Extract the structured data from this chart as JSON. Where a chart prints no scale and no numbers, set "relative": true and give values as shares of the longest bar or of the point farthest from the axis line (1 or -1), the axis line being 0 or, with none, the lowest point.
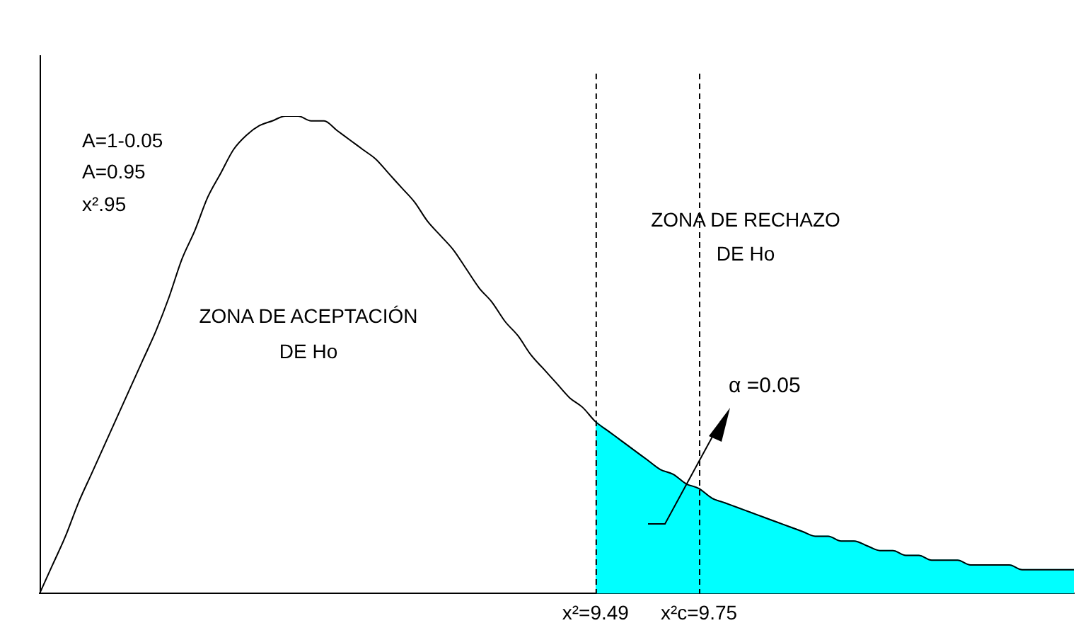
{
  "chart_data": {
    "type": "line",
    "relative": true,
    "legend": false,
    "grid": false,
    "marker": "none",
    "categories": [
      null,
      null,
      null,
      null,
      null,
      null,
      null,
      null,
      null,
      null,
      null,
      null,
      null,
      null,
      null,
      null,
      null,
      null,
      null,
      null,
      null,
      null,
      null,
      null,
      null,
      null,
      null,
      null,
      null,
      null,
      null,
      null,
      null,
      null,
      null,
      null,
      null,
      null,
      null,
      null,
      null,
      null,
      null,
      "x²=9.49",
      null,
      null,
      null,
      null,
      null,
      null,
      null,
      "x²c=9.75",
      null,
      null,
      null,
      null,
      null,
      null,
      null,
      null,
      null,
      null,
      null,
      null,
      null,
      null,
      null,
      null,
      null,
      null,
      null,
      null,
      null,
      null,
      null,
      null,
      null,
      null,
      null,
      null,
      null
    ],
    "series": [
      {
        "color": "#000000",
        "values": [
          0,
          0.06,
          0.12,
          0.19,
          0.25,
          0.31,
          0.37,
          0.43,
          0.49,
          0.55,
          0.62,
          0.7,
          0.76,
          0.83,
          0.88,
          0.93,
          0.96,
          0.98,
          0.99,
          1,
          1,
          0.99,
          0.99,
          0.97,
          0.95,
          0.93,
          0.91,
          0.88,
          0.85,
          0.82,
          0.78,
          0.75,
          0.72,
          0.68,
          0.64,
          0.61,
          0.57,
          0.54,
          0.5,
          0.47,
          0.44,
          0.41,
          0.39,
          0.36,
          0.34,
          0.32,
          0.3,
          0.28,
          0.26,
          0.25,
          0.23,
          0.22,
          0.2,
          0.19,
          0.18,
          0.17,
          0.16,
          0.15,
          0.14,
          0.13,
          0.12,
          0.12,
          0.11,
          0.11,
          0.1,
          0.09,
          0.09,
          0.08,
          0.08,
          0.07,
          0.07,
          0.07,
          0.06,
          0.06,
          0.06,
          0.06,
          0.05,
          0.05,
          0.05,
          0.05,
          0.05
        ]
      },
      {
        "type": "area",
        "color": "#00ffff",
        "values": [
          null,
          null,
          null,
          null,
          null,
          null,
          null,
          null,
          null,
          null,
          null,
          null,
          null,
          null,
          null,
          null,
          null,
          null,
          null,
          null,
          null,
          null,
          null,
          null,
          null,
          null,
          null,
          null,
          null,
          null,
          null,
          null,
          null,
          null,
          null,
          null,
          null,
          null,
          null,
          null,
          null,
          null,
          null,
          0.36,
          0.34,
          0.32,
          0.3,
          0.28,
          0.26,
          0.25,
          0.23,
          0.22,
          0.2,
          0.19,
          0.18,
          0.17,
          0.16,
          0.15,
          0.14,
          0.13,
          0.12,
          0.12,
          0.11,
          0.11,
          0.1,
          0.09,
          0.09,
          0.08,
          0.08,
          0.07,
          0.07,
          0.07,
          0.06,
          0.06,
          0.06,
          0.06,
          0.05,
          0.05,
          0.05,
          0.05,
          0.05
        ]
      }
    ],
    "ref_lines": [
      {
        "axis": "x",
        "value": "x²=9.49",
        "line_style": "dashed",
        "color": "#000000"
      },
      {
        "axis": "x",
        "value": "x²c=9.75",
        "line_style": "dashed",
        "color": "#000000"
      }
    ],
    "annotations": [
      "A=1-0.05",
      "A=0.95",
      "x².95",
      "ZONA DE ACEPTACIÓN",
      "DE Ho",
      "ZONA DE RECHAZO",
      "DE Ho",
      "α =0.05"
    ]
  }
}
